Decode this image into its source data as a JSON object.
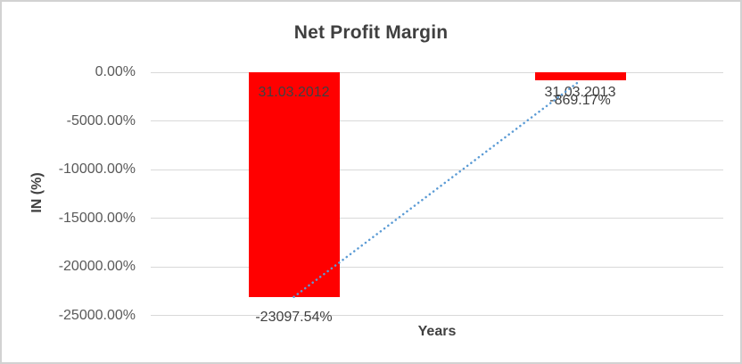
{
  "chart_data": {
    "type": "bar",
    "title": "Net Profit Margin",
    "xlabel": "Years",
    "ylabel": "IN (%)",
    "categories": [
      "31.03.2012",
      "31.03.2013"
    ],
    "series": [
      {
        "name": "net-profit-margin-bars",
        "type": "bar",
        "color": "#FF0000",
        "values": [
          -23097.54,
          -869.17
        ],
        "data_labels": [
          "-23097.54%",
          "-869.17%"
        ]
      },
      {
        "name": "net-profit-margin-trendline",
        "type": "line",
        "line_style": "dotted",
        "color": "#5B9BD5",
        "values": [
          -23097.54,
          -869.17
        ]
      }
    ],
    "y_axis": {
      "min": -25000,
      "max": 0,
      "ticks": [
        0,
        -5000,
        -10000,
        -15000,
        -20000,
        -25000
      ],
      "tick_labels": [
        "0.00%",
        "-5000.00%",
        "-10000.00%",
        "-15000.00%",
        "-20000.00%",
        "-25000.00%"
      ]
    },
    "grid": true,
    "legend": "none",
    "colors": {
      "bar": "#FF0000",
      "line": "#5B9BD5",
      "gridline": "#D9D9D9",
      "title_text": "#3F3F3F",
      "tick_text": "#595959",
      "label_text": "#404040",
      "frame_border": "#D2D2D2"
    }
  }
}
